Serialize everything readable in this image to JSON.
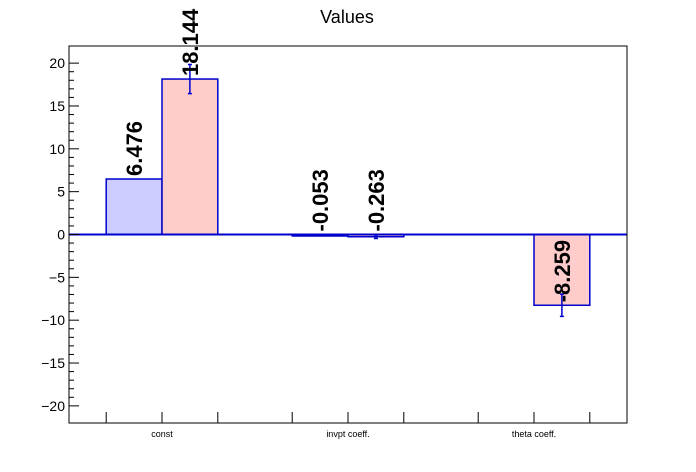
{
  "chart_data": {
    "type": "bar",
    "title": "Values",
    "xlabel": "",
    "ylabel": "",
    "categories": [
      "const",
      "invpt coeff.",
      "theta coeff."
    ],
    "ylim": [
      -22,
      22
    ],
    "yticks": [
      -20,
      -15,
      -10,
      -5,
      0,
      5,
      10,
      15,
      20
    ],
    "ytick_labels": [
      "−20",
      "−15",
      "−10",
      "−5",
      "0",
      "5",
      "10",
      "15",
      "20"
    ],
    "grid": false,
    "series": [
      {
        "values": [
          6.476,
          -0.053,
          0
        ],
        "value_labels": [
          "6.476",
          "-0.053",
          ""
        ],
        "errors": [
          0,
          0,
          0
        ],
        "fill": "#ccccff",
        "stroke": "#0000cc"
      },
      {
        "values": [
          18.144,
          -0.263,
          -8.259
        ],
        "value_labels": [
          "18.144",
          "-0.263",
          "-8.259"
        ],
        "errors": [
          1.7,
          0.2,
          1.3
        ],
        "fill": "#ffcccc",
        "stroke": "#0000cc"
      }
    ],
    "colors": {
      "baseline": "#0000cc",
      "axis": "#000000"
    }
  }
}
